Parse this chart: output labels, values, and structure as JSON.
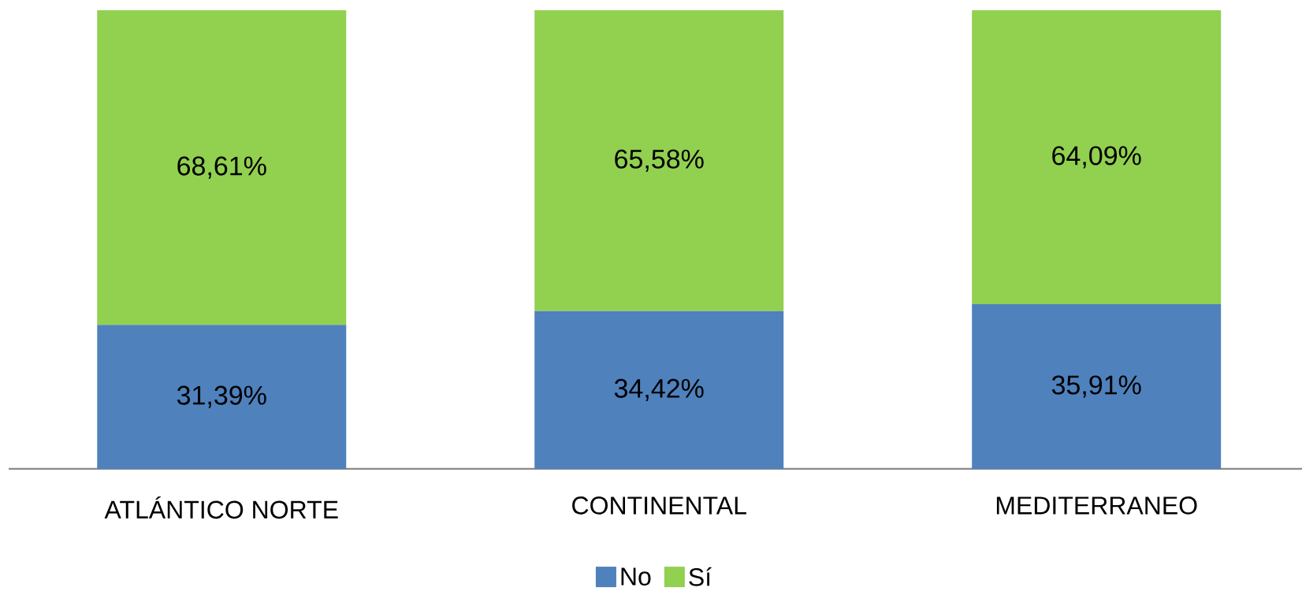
{
  "chart_data": {
    "type": "bar",
    "stacked": true,
    "categories": [
      "ATLÁNTICO NORTE",
      "CONTINENTAL",
      "MEDITERRANEO"
    ],
    "series": [
      {
        "name": "No",
        "color": "#4f81bd",
        "values": [
          31.39,
          34.42,
          35.91
        ],
        "value_labels": [
          "31,39%",
          "34,42%",
          "35,91%"
        ]
      },
      {
        "name": "Sí",
        "color": "#92d050",
        "values": [
          68.61,
          65.58,
          64.09
        ],
        "value_labels": [
          "68,61%",
          "65,58%",
          "64,09%"
        ]
      }
    ],
    "ylim": [
      0,
      100
    ],
    "tick_labels": "x",
    "legend": "bottom",
    "grid": false
  }
}
